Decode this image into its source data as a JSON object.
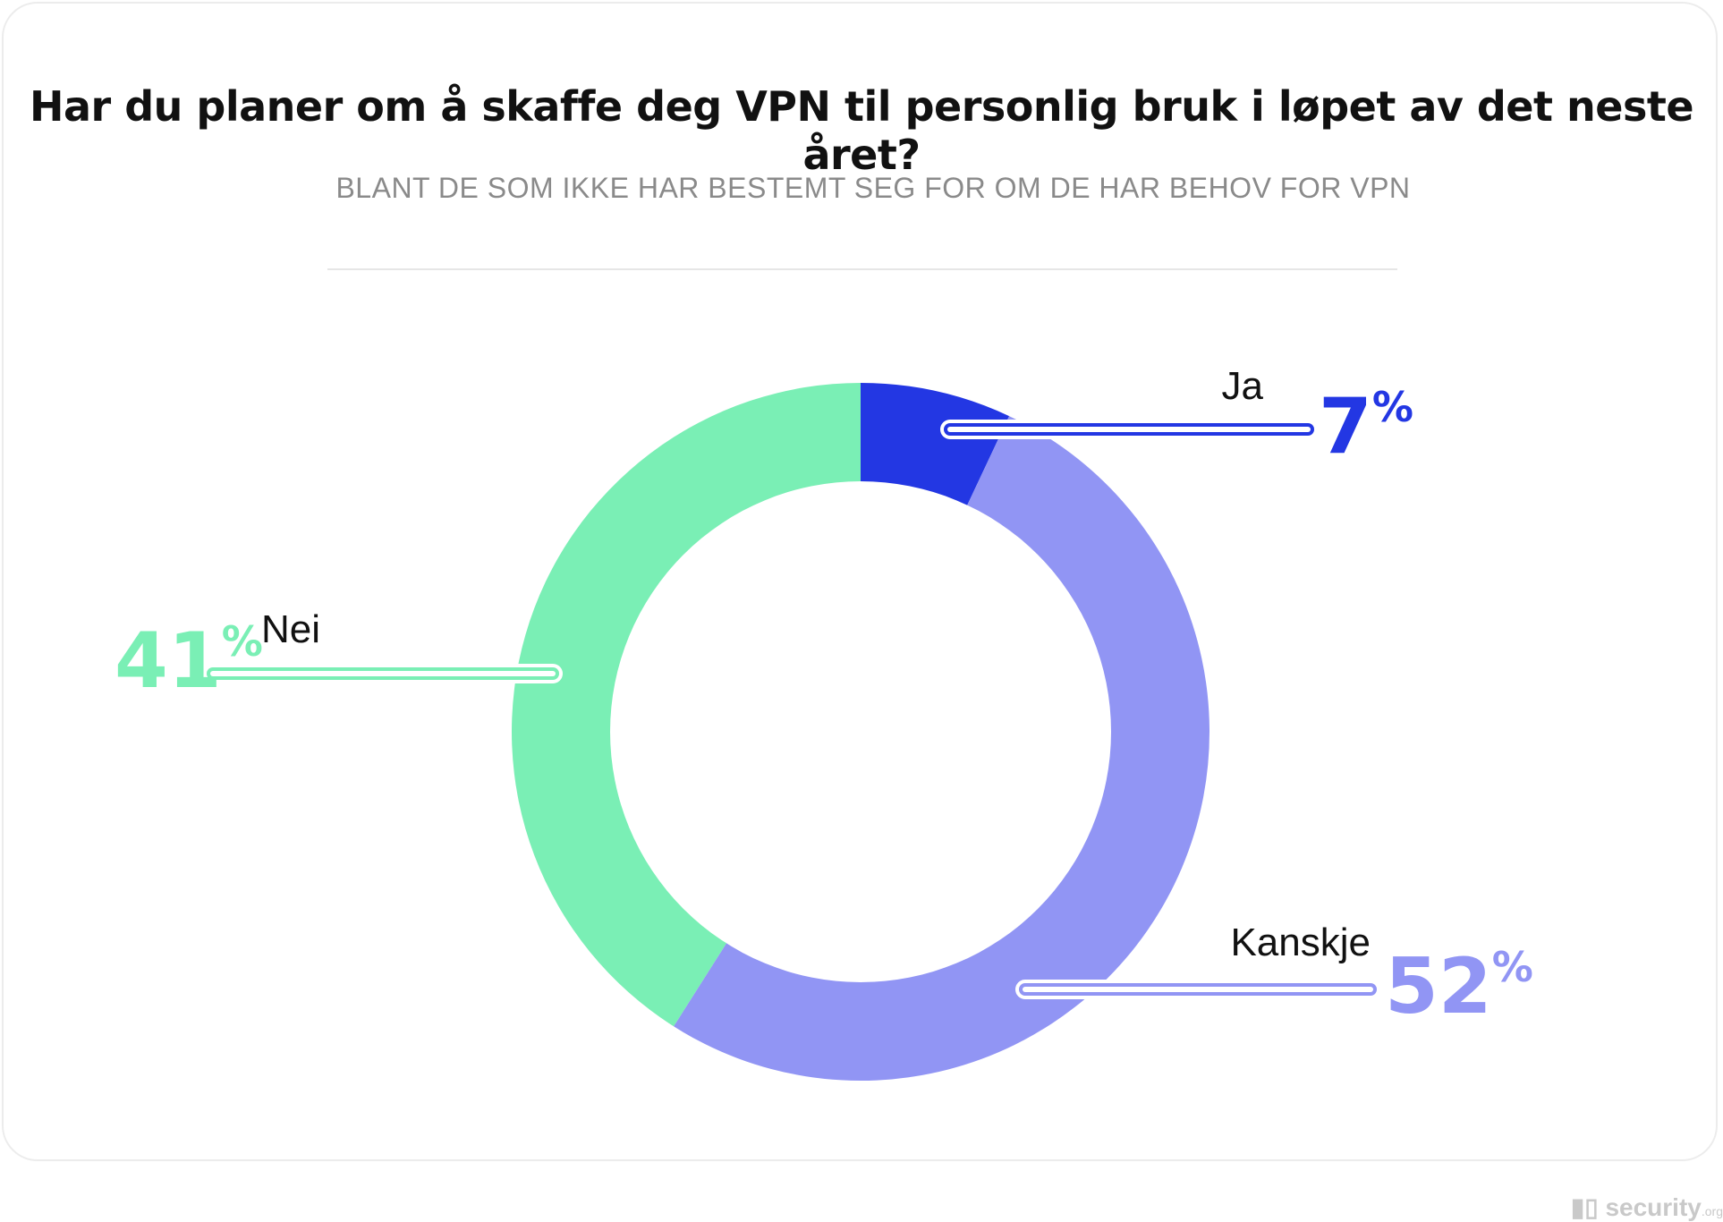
{
  "chart_data": {
    "type": "donut",
    "title": "Har du planer om å skaffe deg VPN til personlig bruk i løpet av det neste året?",
    "subtitle": "BLANT DE SOM IKKE HAR BESTEMT SEG FOR OM DE HAR BEHOV FOR VPN",
    "unit": "%",
    "slices": [
      {
        "label": "Ja",
        "value": 7,
        "display": "7",
        "color": "#2337e3"
      },
      {
        "label": "Kanskje",
        "value": 52,
        "display": "52",
        "color": "#9195f4"
      },
      {
        "label": "Nei",
        "value": 41,
        "display": "41",
        "color": "#7aefb5"
      }
    ]
  },
  "brand": {
    "logo_text": "security",
    "logo_suffix": ".org"
  }
}
